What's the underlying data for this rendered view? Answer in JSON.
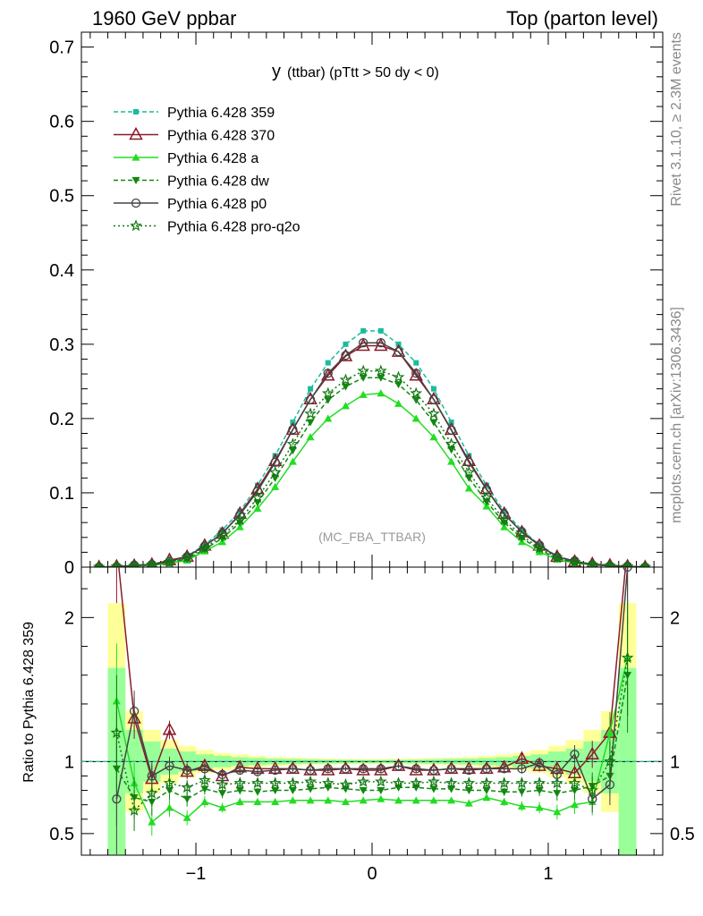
{
  "header": {
    "left": "1960 GeV ppbar",
    "right": "Top (parton level)"
  },
  "side_labels": {
    "rivet": "Rivet 3.1.10, ≥ 2.3M events",
    "mcplots": "mcplots.cern.ch [arXiv:1306.3436]"
  },
  "chart_data": {
    "type": "line",
    "title": "y (ttbar) (pTtt > 50 dy < 0)",
    "title_main": "y",
    "title_sub": "(ttbar) (pTtt > 50 dy < 0)",
    "analysis_tag": "(MC_FBA_TTBAR)",
    "xlim": [
      -1.65,
      1.65
    ],
    "xticks": [
      -1,
      0,
      1
    ],
    "xtick_labels": [
      "−1",
      "0",
      "1"
    ],
    "main": {
      "ylim": [
        0,
        0.72
      ],
      "yticks": [
        0,
        0.1,
        0.2,
        0.3,
        0.4,
        0.5,
        0.6,
        0.7
      ],
      "ytick_labels": [
        "0",
        "0.1",
        "0.2",
        "0.3",
        "0.4",
        "0.5",
        "0.6",
        "0.7"
      ]
    },
    "ratio": {
      "ylabel": "Ratio to Pythia 6.428 359",
      "ylim": [
        0.35,
        2.35
      ],
      "yticks": [
        0.5,
        1,
        2
      ],
      "ytick_labels": [
        "0.5",
        "1",
        "2"
      ]
    },
    "x": [
      -1.55,
      -1.45,
      -1.35,
      -1.25,
      -1.15,
      -1.05,
      -0.95,
      -0.85,
      -0.75,
      -0.65,
      -0.55,
      -0.45,
      -0.35,
      -0.25,
      -0.15,
      -0.05,
      0.05,
      0.15,
      0.25,
      0.35,
      0.45,
      0.55,
      0.65,
      0.75,
      0.85,
      0.95,
      1.05,
      1.15,
      1.25,
      1.35,
      1.45,
      1.55
    ],
    "series": [
      {
        "name": "Pythia 6.428 359",
        "color": "#1abc9c",
        "dash": "5,3",
        "marker": "square",
        "values": [
          0,
          0.0005,
          0.002,
          0.004,
          0.008,
          0.015,
          0.03,
          0.05,
          0.075,
          0.11,
          0.15,
          0.195,
          0.24,
          0.275,
          0.3,
          0.318,
          0.318,
          0.3,
          0.275,
          0.24,
          0.195,
          0.15,
          0.11,
          0.075,
          0.05,
          0.03,
          0.015,
          0.008,
          0.004,
          0.002,
          0.0005,
          0
        ]
      },
      {
        "name": "Pythia 6.428 370",
        "color": "#8b1a2a",
        "dash": "",
        "marker": "triangle-open",
        "values": [
          0,
          0.001,
          0.002,
          0.0035,
          0.0095,
          0.014,
          0.029,
          0.045,
          0.072,
          0.105,
          0.143,
          0.185,
          0.226,
          0.258,
          0.284,
          0.298,
          0.298,
          0.29,
          0.258,
          0.226,
          0.185,
          0.143,
          0.105,
          0.072,
          0.047,
          0.029,
          0.014,
          0.0075,
          0.0042,
          0.0025,
          0.0012,
          0
        ]
      },
      {
        "name": "Pythia 6.428 a",
        "color": "#22dd22",
        "dash": "",
        "marker": "triangle",
        "values": [
          0,
          0.0007,
          0.0016,
          0.0023,
          0.0053,
          0.0092,
          0.0215,
          0.034,
          0.054,
          0.079,
          0.108,
          0.142,
          0.175,
          0.2,
          0.217,
          0.232,
          0.234,
          0.22,
          0.2,
          0.175,
          0.142,
          0.106,
          0.082,
          0.054,
          0.034,
          0.0205,
          0.0104,
          0.0055,
          0.003,
          0.0018,
          0.0007,
          0
        ]
      },
      {
        "name": "Pythia 6.428 dw",
        "color": "#118811",
        "dash": "5,3",
        "marker": "triangle-down",
        "values": [
          0,
          0.0007,
          0.0015,
          0.003,
          0.0065,
          0.011,
          0.024,
          0.039,
          0.06,
          0.087,
          0.12,
          0.157,
          0.195,
          0.225,
          0.243,
          0.255,
          0.255,
          0.246,
          0.225,
          0.195,
          0.158,
          0.12,
          0.088,
          0.06,
          0.039,
          0.024,
          0.0114,
          0.0063,
          0.0033,
          0.0016,
          0.0008,
          0
        ]
      },
      {
        "name": "Pythia 6.428 p0",
        "color": "#444444",
        "dash": "",
        "marker": "circle-open",
        "values": [
          0,
          0.0004,
          0.0027,
          0.0036,
          0.0078,
          0.0141,
          0.0285,
          0.0455,
          0.0705,
          0.1023,
          0.141,
          0.1853,
          0.2256,
          0.261,
          0.285,
          0.302,
          0.302,
          0.29,
          0.261,
          0.2256,
          0.1843,
          0.141,
          0.1045,
          0.0713,
          0.0475,
          0.0297,
          0.0137,
          0.0084,
          0.003,
          0.0017,
          0.0012,
          0
        ]
      },
      {
        "name": "Pythia 6.428 pro-q2o",
        "color": "#117711",
        "dash": "2,3",
        "marker": "star",
        "values": [
          0,
          0.0006,
          0.0013,
          0.0031,
          0.0068,
          0.0131,
          0.0256,
          0.0426,
          0.0636,
          0.0935,
          0.1275,
          0.1656,
          0.2064,
          0.2338,
          0.252,
          0.264,
          0.264,
          0.2556,
          0.2338,
          0.2064,
          0.1658,
          0.1275,
          0.0935,
          0.0638,
          0.0425,
          0.0256,
          0.0128,
          0.0066,
          0.0032,
          0.0017,
          0.0009,
          0
        ]
      }
    ],
    "ratio_series": [
      {
        "name": "Pythia 6.428 370",
        "values": [
          null,
          2.5,
          1.3,
          0.88,
          1.22,
          0.93,
          0.97,
          0.9,
          0.96,
          0.95,
          0.95,
          0.95,
          0.94,
          0.94,
          0.95,
          0.94,
          0.94,
          0.97,
          0.94,
          0.94,
          0.95,
          0.95,
          0.95,
          0.96,
          1.02,
          0.97,
          0.95,
          0.92,
          1.05,
          1.2,
          2.5,
          null
        ]
      },
      {
        "name": "Pythia 6.428 a",
        "values": [
          null,
          1.42,
          0.85,
          0.58,
          0.68,
          0.61,
          0.72,
          0.68,
          0.72,
          0.72,
          0.72,
          0.73,
          0.73,
          0.73,
          0.72,
          0.73,
          0.74,
          0.73,
          0.73,
          0.73,
          0.73,
          0.71,
          0.75,
          0.72,
          0.69,
          0.68,
          0.65,
          0.7,
          0.72,
          1.2,
          1.72,
          null
        ]
      },
      {
        "name": "Pythia 6.428 dw",
        "values": [
          null,
          0.95,
          0.75,
          0.72,
          0.8,
          0.74,
          0.81,
          0.78,
          0.8,
          0.79,
          0.8,
          0.8,
          0.81,
          0.82,
          0.81,
          0.8,
          0.8,
          0.82,
          0.82,
          0.81,
          0.81,
          0.8,
          0.8,
          0.79,
          0.79,
          0.8,
          0.78,
          0.8,
          0.83,
          0.9,
          1.6,
          null
        ]
      },
      {
        "name": "Pythia 6.428 p0",
        "values": [
          null,
          0.74,
          1.35,
          0.9,
          0.97,
          0.94,
          0.95,
          0.91,
          0.94,
          0.93,
          0.94,
          0.95,
          0.94,
          0.95,
          0.95,
          0.95,
          0.95,
          0.97,
          0.95,
          0.94,
          0.95,
          0.94,
          0.95,
          0.95,
          0.95,
          0.99,
          0.91,
          1.05,
          0.74,
          0.84,
          2.35,
          null
        ]
      },
      {
        "name": "Pythia 6.428 pro-q2o",
        "values": [
          null,
          1.2,
          0.66,
          0.78,
          0.85,
          0.82,
          0.87,
          0.84,
          0.85,
          0.85,
          0.85,
          0.85,
          0.86,
          0.85,
          0.84,
          0.86,
          0.86,
          0.85,
          0.85,
          0.86,
          0.85,
          0.85,
          0.85,
          0.85,
          0.85,
          0.85,
          0.85,
          0.85,
          0.8,
          1.0,
          1.72,
          null
        ]
      }
    ],
    "ratio_band_inner": [
      null,
      0.65,
      0.22,
      0.14,
      0.09,
      0.07,
      0.05,
      0.04,
      0.03,
      0.025,
      0.02,
      0.018,
      0.015,
      0.013,
      0.012,
      0.011,
      0.011,
      0.012,
      0.013,
      0.015,
      0.018,
      0.02,
      0.025,
      0.03,
      0.04,
      0.05,
      0.07,
      0.09,
      0.14,
      0.22,
      0.65,
      null
    ],
    "ratio_band_outer": [
      null,
      1.1,
      0.35,
      0.22,
      0.15,
      0.11,
      0.08,
      0.06,
      0.05,
      0.04,
      0.032,
      0.028,
      0.024,
      0.021,
      0.019,
      0.018,
      0.018,
      0.019,
      0.021,
      0.024,
      0.028,
      0.032,
      0.04,
      0.05,
      0.06,
      0.08,
      0.11,
      0.15,
      0.22,
      0.35,
      1.1,
      null
    ]
  }
}
